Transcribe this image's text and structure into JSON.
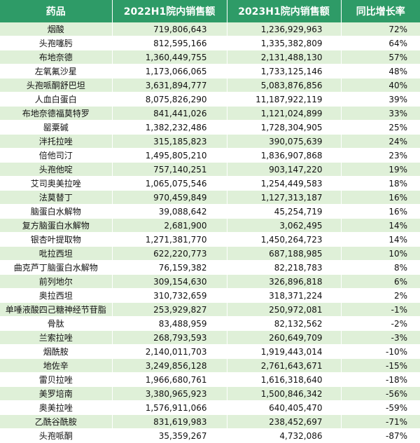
{
  "table": {
    "headers": [
      "药品",
      "2022H1院内销售额",
      "2023H1院内销售额",
      "同比增长率"
    ],
    "rows": [
      [
        "烟酸",
        "719,806,643",
        "1,236,929,963",
        "72%"
      ],
      [
        "头孢噻肟",
        "812,595,166",
        "1,335,382,809",
        "64%"
      ],
      [
        "布地奈德",
        "1,360,449,755",
        "2,131,488,130",
        "57%"
      ],
      [
        "左氧氟沙星",
        "1,173,066,065",
        "1,733,125,146",
        "48%"
      ],
      [
        "头孢哌酮舒巴坦",
        "3,631,894,777",
        "5,083,876,856",
        "40%"
      ],
      [
        "人血白蛋白",
        "8,075,826,290",
        "11,187,922,119",
        "39%"
      ],
      [
        "布地奈德福莫特罗",
        "841,441,026",
        "1,121,024,899",
        "33%"
      ],
      [
        "罂粟碱",
        "1,382,232,486",
        "1,728,304,905",
        "25%"
      ],
      [
        "泮托拉唑",
        "315,185,823",
        "390,075,639",
        "24%"
      ],
      [
        "倍他司汀",
        "1,495,805,210",
        "1,836,907,868",
        "23%"
      ],
      [
        "头孢他啶",
        "757,140,251",
        "903,147,220",
        "19%"
      ],
      [
        "艾司奥美拉唑",
        "1,065,075,546",
        "1,254,449,583",
        "18%"
      ],
      [
        "法莫替丁",
        "970,459,849",
        "1,127,313,187",
        "16%"
      ],
      [
        "脑蛋白水解物",
        "39,088,642",
        "45,254,719",
        "16%"
      ],
      [
        "复方脑蛋白水解物",
        "2,681,900",
        "3,062,495",
        "14%"
      ],
      [
        "银杏叶提取物",
        "1,271,381,770",
        "1,450,264,723",
        "14%"
      ],
      [
        "吡拉西坦",
        "622,220,773",
        "687,188,985",
        "10%"
      ],
      [
        "曲克芦丁脑蛋白水解物",
        "76,159,382",
        "82,218,783",
        "8%"
      ],
      [
        "前列地尔",
        "309,154,630",
        "326,896,818",
        "6%"
      ],
      [
        "奥拉西坦",
        "310,732,659",
        "318,371,224",
        "2%"
      ],
      [
        "单唾液酸四己糖神经节苷脂",
        "253,929,827",
        "250,972,081",
        "-1%"
      ],
      [
        "骨肽",
        "83,488,959",
        "82,132,562",
        "-2%"
      ],
      [
        "兰索拉唑",
        "268,793,593",
        "260,649,709",
        "-3%"
      ],
      [
        "烟酰胺",
        "2,140,011,703",
        "1,919,443,014",
        "-10%"
      ],
      [
        "地佐辛",
        "3,249,856,128",
        "2,761,643,671",
        "-15%"
      ],
      [
        "雷贝拉唑",
        "1,966,680,761",
        "1,616,318,640",
        "-18%"
      ],
      [
        "美罗培南",
        "3,380,965,923",
        "1,500,846,342",
        "-56%"
      ],
      [
        "奥美拉唑",
        "1,576,911,066",
        "640,405,470",
        "-59%"
      ],
      [
        "乙酰谷酰胺",
        "831,619,983",
        "238,452,697",
        "-71%"
      ],
      [
        "头孢哌酮",
        "35,359,267",
        "4,732,086",
        "-87%"
      ]
    ]
  },
  "colors": {
    "header_bg": "#2e9b67",
    "header_text": "#ffffff",
    "stripe_bg": "#dff0d8",
    "plain_bg": "#ffffff"
  }
}
